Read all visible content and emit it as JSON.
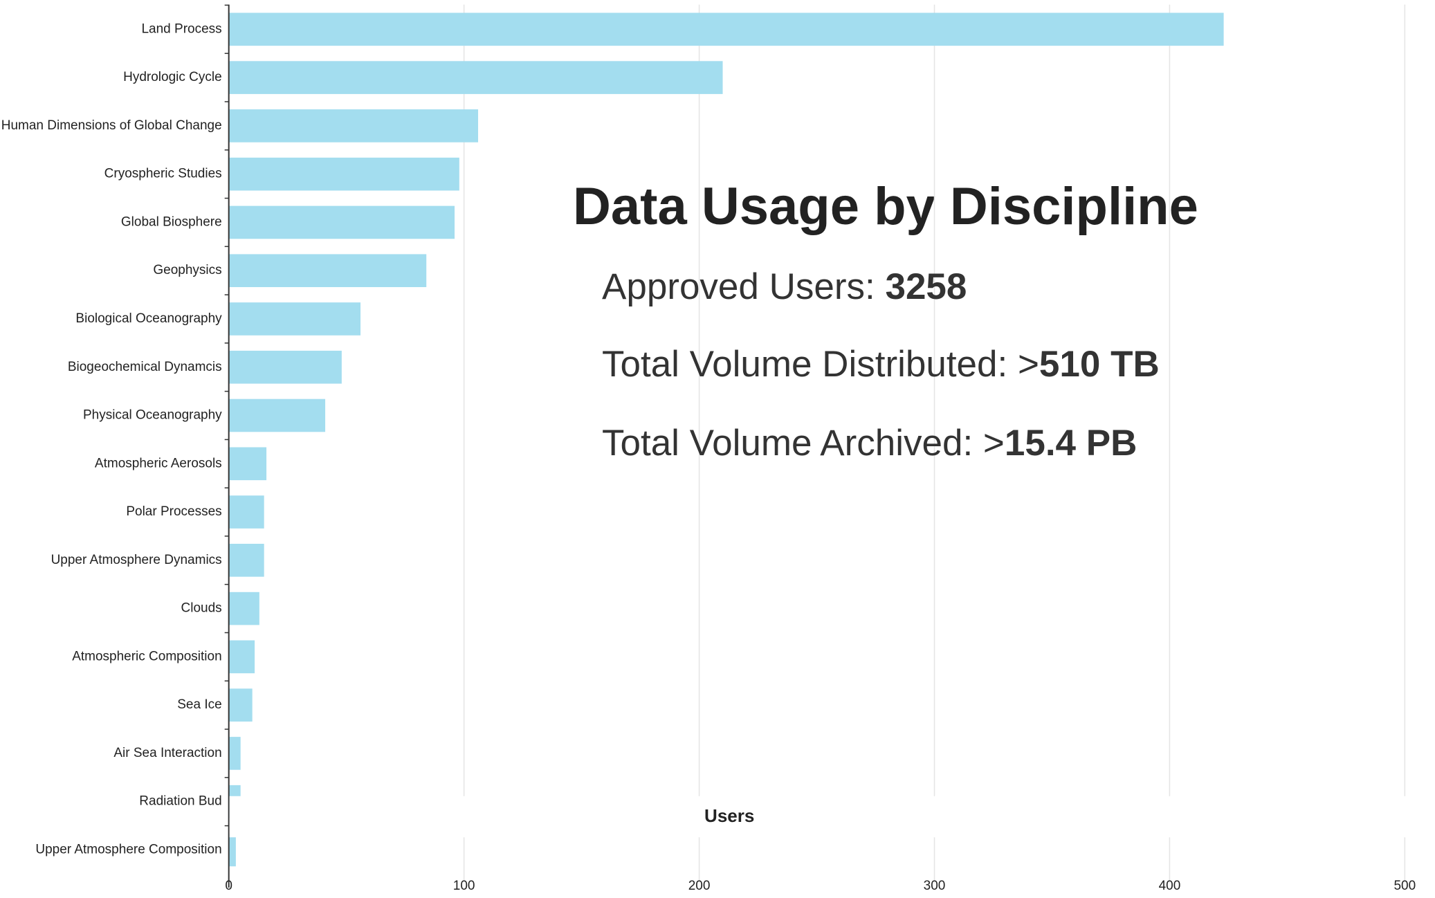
{
  "chart_data": {
    "type": "barh",
    "title": "Data Usage by Discipline",
    "annotations": [
      {
        "label": "Approved Users: ",
        "value": "3258"
      },
      {
        "label": "Total Volume Distributed: >",
        "value": "510 TB"
      },
      {
        "label": "Total Volume Archived: >",
        "value": "15.4 PB"
      }
    ],
    "xlabel": "Users",
    "categories": [
      "Land Process",
      "Hydrologic Cycle",
      "Human Dimensions of Global Change",
      "Cryospheric Studies",
      "Global Biosphere",
      "Geophysics",
      "Biological Oceanography",
      "Biogeochemical Dynamcis",
      "Physical Oceanography",
      "Atmospheric Aerosols",
      "Polar Processes",
      "Upper Atmosphere Dynamics",
      "Clouds",
      "Atmospheric Composition",
      "Sea Ice",
      "Air Sea Interaction",
      "Radiation Bud",
      "Upper Atmosphere Composition"
    ],
    "values": [
      423,
      210,
      106,
      98,
      96,
      84,
      56,
      48,
      41,
      16,
      15,
      15,
      13,
      11,
      10,
      5,
      5,
      3
    ],
    "color": "#a3ddef",
    "xlim": [
      0,
      500
    ],
    "xticks": [
      0,
      100,
      200,
      300,
      400,
      500
    ],
    "grid": true
  }
}
